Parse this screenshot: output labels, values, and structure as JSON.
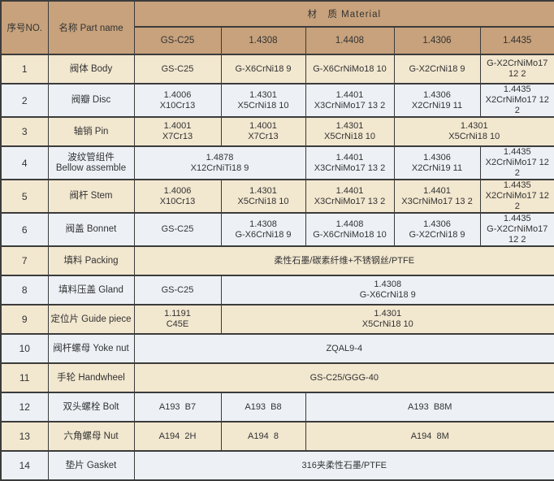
{
  "colors": {
    "header_bg": "#c7a27c",
    "row_cream": "#f2e7cf",
    "row_blue": "#edf1f6",
    "border": "#3b3b3b",
    "text": "#333333"
  },
  "table": {
    "header": {
      "no_label": "序号NO.",
      "part_label": "名称 Part name",
      "material_label": "材　质 Material",
      "material_columns": [
        "GS-C25",
        "1.4308",
        "1.4408",
        "1.4306",
        "1.4435"
      ]
    },
    "rows": [
      {
        "no": "1",
        "part": [
          "阀体 Body"
        ],
        "cells": [
          {
            "span": 1,
            "lines": [
              "GS-C25"
            ]
          },
          {
            "span": 1,
            "lines": [
              "G-X6CrNi18 9"
            ]
          },
          {
            "span": 1,
            "lines": [
              "G-X6CrNiMo18 10"
            ]
          },
          {
            "span": 1,
            "lines": [
              "G-X2CrNi18 9"
            ]
          },
          {
            "span": 1,
            "lines": [
              "G-X2CrNiMo17 12 2"
            ]
          }
        ]
      },
      {
        "no": "2",
        "part": [
          "阀瓣 Disc"
        ],
        "cells": [
          {
            "span": 1,
            "lines": [
              "1.4006",
              "X10Cr13"
            ]
          },
          {
            "span": 1,
            "lines": [
              "1.4301",
              "X5CrNi18 10"
            ]
          },
          {
            "span": 1,
            "lines": [
              "1.4401",
              "X3CrNiMo17 13 2"
            ]
          },
          {
            "span": 1,
            "lines": [
              "1.4306",
              "X2CrNi19 11"
            ]
          },
          {
            "span": 1,
            "lines": [
              "1.4435",
              "X2CrNiMo17 12 2"
            ]
          }
        ]
      },
      {
        "no": "3",
        "part": [
          "轴销 Pin"
        ],
        "cells": [
          {
            "span": 1,
            "lines": [
              "1.4001",
              "X7Cr13"
            ]
          },
          {
            "span": 1,
            "lines": [
              "1.4001",
              "X7Cr13"
            ]
          },
          {
            "span": 1,
            "lines": [
              "1.4301",
              "X5CrNi18 10"
            ]
          },
          {
            "span": 2,
            "lines": [
              "1.4301",
              "X5CrNi18 10"
            ]
          }
        ]
      },
      {
        "no": "4",
        "part": [
          "波纹管组件",
          "Bellow assemble"
        ],
        "cells": [
          {
            "span": 2,
            "lines": [
              "1.4878",
              "X12CrNiTi18 9"
            ]
          },
          {
            "span": 1,
            "lines": [
              "1.4401",
              "X3CrNiMo17 13 2"
            ]
          },
          {
            "span": 1,
            "lines": [
              "1.4306",
              "X2CrNi19 11"
            ]
          },
          {
            "span": 1,
            "lines": [
              "1.4435",
              "X2CrNiMo17 12 2"
            ]
          }
        ]
      },
      {
        "no": "5",
        "part": [
          "阀杆 Stem"
        ],
        "cells": [
          {
            "span": 1,
            "lines": [
              "1.4006",
              "X10Cr13"
            ]
          },
          {
            "span": 1,
            "lines": [
              "1.4301",
              "X5CrNi18 10"
            ]
          },
          {
            "span": 1,
            "lines": [
              "1.4401",
              "X3CrNiMo17 13 2"
            ]
          },
          {
            "span": 1,
            "lines": [
              "1.4401",
              "X3CrNiMo17 13 2"
            ]
          },
          {
            "span": 1,
            "lines": [
              "1.4435",
              "X2CrNiMo17 12 2"
            ]
          }
        ]
      },
      {
        "no": "6",
        "part": [
          "阀盖 Bonnet"
        ],
        "cells": [
          {
            "span": 1,
            "lines": [
              "GS-C25"
            ]
          },
          {
            "span": 1,
            "lines": [
              "1.4308",
              "G-X6CrNi18 9"
            ]
          },
          {
            "span": 1,
            "lines": [
              "1.4408",
              "G-X6CrNiMo18 10"
            ]
          },
          {
            "span": 1,
            "lines": [
              "1.4306",
              "G-X2CrNi18 9"
            ]
          },
          {
            "span": 1,
            "lines": [
              "1.4435",
              "G-X2CrNiMo17 12 2"
            ]
          }
        ]
      },
      {
        "no": "7",
        "part": [
          "填料 Packing"
        ],
        "cells": [
          {
            "span": 5,
            "lines": [
              "柔性石墨/碳素纤维+不锈钢丝/PTFE"
            ]
          }
        ]
      },
      {
        "no": "8",
        "part": [
          "填料压盖 Gland"
        ],
        "cells": [
          {
            "span": 1,
            "lines": [
              "GS-C25"
            ]
          },
          {
            "span": 4,
            "lines": [
              "1.4308",
              "G-X6CrNi18 9"
            ]
          }
        ]
      },
      {
        "no": "9",
        "part": [
          "定位片 Guide piece"
        ],
        "cells": [
          {
            "span": 1,
            "lines": [
              "1.1191",
              "C45E"
            ]
          },
          {
            "span": 4,
            "lines": [
              "1.4301",
              "X5CrNi18 10"
            ]
          }
        ]
      },
      {
        "no": "10",
        "part": [
          "阀杆螺母 Yoke nut"
        ],
        "cells": [
          {
            "span": 5,
            "lines": [
              "ZQAL9-4"
            ]
          }
        ]
      },
      {
        "no": "11",
        "part": [
          "手轮 Handwheel"
        ],
        "cells": [
          {
            "span": 5,
            "lines": [
              "GS-C25/GGG-40"
            ]
          }
        ]
      },
      {
        "no": "12",
        "part": [
          "双头螺栓 Bolt"
        ],
        "cells": [
          {
            "span": 1,
            "lines": [
              "A193  B7"
            ]
          },
          {
            "span": 1,
            "lines": [
              "A193  B8"
            ]
          },
          {
            "span": 3,
            "lines": [
              "A193  B8M"
            ]
          }
        ]
      },
      {
        "no": "13",
        "part": [
          "六角螺母 Nut"
        ],
        "cells": [
          {
            "span": 1,
            "lines": [
              "A194  2H"
            ]
          },
          {
            "span": 1,
            "lines": [
              "A194  8"
            ]
          },
          {
            "span": 3,
            "lines": [
              "A194  8M"
            ]
          }
        ]
      },
      {
        "no": "14",
        "part": [
          "垫片 Gasket"
        ],
        "cells": [
          {
            "span": 5,
            "lines": [
              "316夹柔性石墨/PTFE"
            ]
          }
        ]
      }
    ]
  }
}
